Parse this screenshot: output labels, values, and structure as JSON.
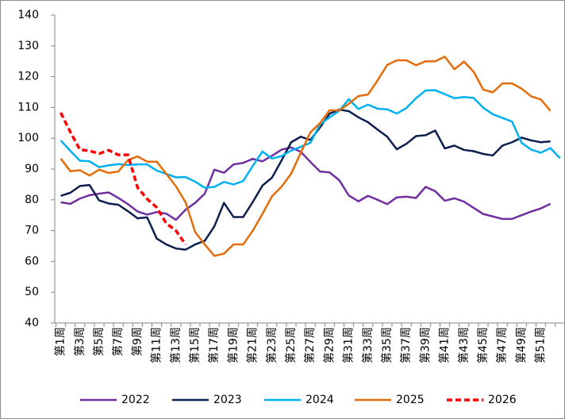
{
  "chart_data": {
    "type": "line",
    "categories": [
      "第1周",
      null,
      "第3周",
      null,
      "第5周",
      null,
      "第7周",
      null,
      "第9周",
      null,
      "第11周",
      null,
      "第13周",
      null,
      "第15周",
      null,
      "第17周",
      null,
      "第19周",
      null,
      "第21周",
      null,
      "第23周",
      null,
      "第25周",
      null,
      "第27周",
      null,
      "第29周",
      null,
      "第31周",
      null,
      "第33周",
      null,
      "第35周",
      null,
      "第37周",
      null,
      "第39周",
      null,
      "第41周",
      null,
      "第43周",
      null,
      "第45周",
      null,
      "第47周",
      null,
      "第49周",
      null,
      "第51周",
      null,
      null
    ],
    "ylim": [
      40,
      140
    ],
    "yticks": [
      40,
      50,
      60,
      70,
      80,
      90,
      100,
      110,
      120,
      130,
      140
    ],
    "grid": false,
    "legend": "bottom",
    "series": [
      {
        "name": "2022",
        "color": "#7030a0",
        "values": [
          79.2,
          78.7,
          80.4,
          81.5,
          82,
          82.4,
          80.6,
          78.6,
          76.2,
          75.2,
          76,
          75.5,
          73.5,
          76.8,
          79,
          82,
          89.8,
          88.8,
          91.5,
          92,
          93.3,
          92.5,
          94.3,
          96.3,
          97,
          95.6,
          92.3,
          89.2,
          88.9,
          86.4,
          81.4,
          79.5,
          81.3,
          80,
          78.6,
          80.8,
          81,
          80.6,
          84.2,
          82.8,
          79.7,
          80.5,
          79.4,
          77.4,
          75.4,
          74.6,
          73.8,
          73.8,
          75,
          76.2,
          77.2,
          78.7,
          null
        ]
      },
      {
        "name": "2023",
        "color": "#0d1f4f",
        "values": [
          81.3,
          82.3,
          84.5,
          84.8,
          79.8,
          78.8,
          78.4,
          76.3,
          74,
          74.3,
          67.4,
          65.5,
          64.2,
          63.8,
          65.5,
          66.7,
          71.4,
          79,
          74.4,
          74.4,
          79.3,
          84.6,
          87.2,
          92.8,
          98.7,
          100.5,
          99.4,
          103.5,
          108,
          109.3,
          108.8,
          106.8,
          105.2,
          102.8,
          100.5,
          96.4,
          98.2,
          100.7,
          101,
          102.5,
          96.7,
          97.6,
          96.2,
          95.8,
          94.9,
          94.4,
          97.6,
          98.7,
          100.2,
          99.3,
          98.7,
          99,
          null
        ]
      },
      {
        "name": "2024",
        "color": "#00b0f0",
        "values": [
          99.3,
          95.9,
          92.7,
          92.5,
          90.6,
          91.2,
          91.6,
          91.3,
          91.5,
          91.5,
          89.5,
          88.4,
          87.3,
          87.4,
          85.9,
          83.9,
          84.2,
          85.8,
          85,
          86.1,
          91,
          95.7,
          93.4,
          94.2,
          96,
          97.2,
          98.5,
          104.5,
          106.8,
          108.9,
          112.7,
          109.5,
          110.9,
          109.6,
          109.4,
          108,
          109.8,
          113,
          115.5,
          115.6,
          114.3,
          113,
          113.4,
          113.1,
          109.9,
          107.8,
          106.6,
          105.4,
          98.5,
          96.3,
          95.3,
          96.8,
          93.5
        ]
      },
      {
        "name": "2025",
        "color": "#e46c0a",
        "values": [
          93.4,
          89.3,
          89.6,
          87.9,
          89.8,
          88.7,
          89.2,
          92.9,
          94.1,
          92.4,
          92.4,
          88.4,
          84.4,
          79.2,
          69.5,
          65.5,
          61.8,
          62.5,
          65.5,
          65.5,
          70,
          75.4,
          81.1,
          84.3,
          88.5,
          95.3,
          101.9,
          104.9,
          109.1,
          109,
          111.2,
          113.7,
          114.2,
          118.8,
          123.8,
          125.3,
          125.3,
          123.7,
          125,
          125,
          126.5,
          122.4,
          124.9,
          121.6,
          115.8,
          114.9,
          117.8,
          117.8,
          116.1,
          113.6,
          112.6,
          108.9,
          null
        ]
      },
      {
        "name": "2026",
        "color": "#ff0000",
        "dashed": true,
        "values": [
          108.3,
          102,
          96.3,
          95.9,
          95,
          96.1,
          94.6,
          94.6,
          84,
          80.3,
          77.5,
          72.3,
          70,
          65.5,
          null,
          null,
          null,
          null,
          null,
          null,
          null,
          null,
          null,
          null,
          null,
          null,
          null,
          null,
          null,
          null,
          null,
          null,
          null,
          null,
          null,
          null,
          null,
          null,
          null,
          null,
          null,
          null,
          null,
          null,
          null,
          null,
          null,
          null,
          null,
          null,
          null,
          null,
          null
        ]
      }
    ]
  }
}
